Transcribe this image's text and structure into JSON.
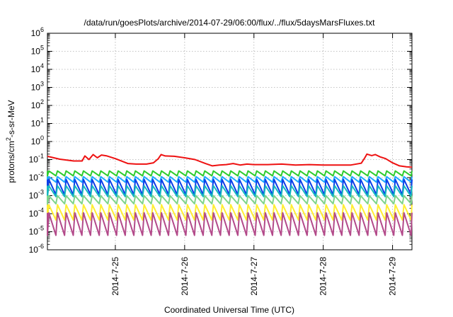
{
  "chart_data": {
    "type": "line",
    "title": "/data/run/goesPlots/archive/2014-07-29/06:00/flux/../flux/5daysMarsFluxes.txt",
    "xlabel": "Coordinated Universal Time (UTC)",
    "ylabel": {
      "prefix": "protons/cm",
      "sup": "2",
      "suffix": "-s-sr-MeV"
    },
    "y_scale": "log",
    "ylim_exponent": [
      -6,
      6
    ],
    "y_ticks": [
      {
        "base": "10",
        "exp": "-6"
      },
      {
        "base": "10",
        "exp": "-5"
      },
      {
        "base": "10",
        "exp": "-4"
      },
      {
        "base": "10",
        "exp": "-3"
      },
      {
        "base": "10",
        "exp": "-2"
      },
      {
        "base": "10",
        "exp": "-1"
      },
      {
        "base": "10",
        "exp": "0"
      },
      {
        "base": "10",
        "exp": "1"
      },
      {
        "base": "10",
        "exp": "2"
      },
      {
        "base": "10",
        "exp": "3"
      },
      {
        "base": "10",
        "exp": "4"
      },
      {
        "base": "10",
        "exp": "5"
      },
      {
        "base": "10",
        "exp": "6"
      }
    ],
    "xlim_days": [
      24.02,
      29.28
    ],
    "x_ticks": [
      {
        "label": "2014-7-25",
        "day": 25
      },
      {
        "label": "2014-7-26",
        "day": 26
      },
      {
        "label": "2014-7-27",
        "day": 27
      },
      {
        "label": "2014-7-28",
        "day": 28
      },
      {
        "label": "2014-7-29",
        "day": 29
      }
    ],
    "grid": true,
    "series": [
      {
        "color": "#ee1111",
        "style": "smooth",
        "points": [
          [
            24.02,
            -0.82
          ],
          [
            24.2,
            -0.98
          ],
          [
            24.4,
            -1.08
          ],
          [
            24.52,
            -1.08
          ],
          [
            24.56,
            -0.8
          ],
          [
            24.62,
            -1.0
          ],
          [
            24.68,
            -0.72
          ],
          [
            24.74,
            -0.9
          ],
          [
            24.8,
            -0.75
          ],
          [
            24.88,
            -0.8
          ],
          [
            25.0,
            -0.95
          ],
          [
            25.18,
            -1.22
          ],
          [
            25.3,
            -1.25
          ],
          [
            25.45,
            -1.25
          ],
          [
            25.55,
            -1.18
          ],
          [
            25.62,
            -0.95
          ],
          [
            25.66,
            -0.72
          ],
          [
            25.72,
            -0.8
          ],
          [
            25.85,
            -0.82
          ],
          [
            26.0,
            -0.9
          ],
          [
            26.15,
            -1.0
          ],
          [
            26.3,
            -1.22
          ],
          [
            26.4,
            -1.35
          ],
          [
            26.5,
            -1.3
          ],
          [
            26.6,
            -1.28
          ],
          [
            26.7,
            -1.22
          ],
          [
            26.8,
            -1.3
          ],
          [
            26.9,
            -1.25
          ],
          [
            27.0,
            -1.28
          ],
          [
            27.2,
            -1.28
          ],
          [
            27.4,
            -1.25
          ],
          [
            27.6,
            -1.3
          ],
          [
            27.8,
            -1.28
          ],
          [
            28.0,
            -1.3
          ],
          [
            28.2,
            -1.3
          ],
          [
            28.4,
            -1.3
          ],
          [
            28.55,
            -1.2
          ],
          [
            28.6,
            -0.9
          ],
          [
            28.63,
            -0.7
          ],
          [
            28.7,
            -0.78
          ],
          [
            28.75,
            -0.72
          ],
          [
            28.82,
            -0.85
          ],
          [
            28.9,
            -0.95
          ],
          [
            29.0,
            -1.18
          ],
          [
            29.1,
            -1.35
          ],
          [
            29.2,
            -1.4
          ],
          [
            29.28,
            -1.42
          ]
        ]
      },
      {
        "color": "#2ecc2e",
        "style": "saw",
        "high": -1.63,
        "low": -1.9
      },
      {
        "color": "#1ea8ff",
        "style": "saw",
        "high": -1.95,
        "low": -2.25
      },
      {
        "color": "#0a3ee8",
        "style": "saw",
        "high": -2.1,
        "low": -2.95
      },
      {
        "color": "#16b8c0",
        "style": "saw",
        "high": -2.45,
        "low": -3.05
      },
      {
        "color": "#7fd48a",
        "style": "saw",
        "high": -3.0,
        "low": -3.45
      },
      {
        "color": "#ffee33",
        "style": "saw",
        "high": -3.5,
        "low": -4.35
      },
      {
        "color": "#b34a8a",
        "style": "saw",
        "high": -3.95,
        "low": -5.2
      }
    ]
  }
}
